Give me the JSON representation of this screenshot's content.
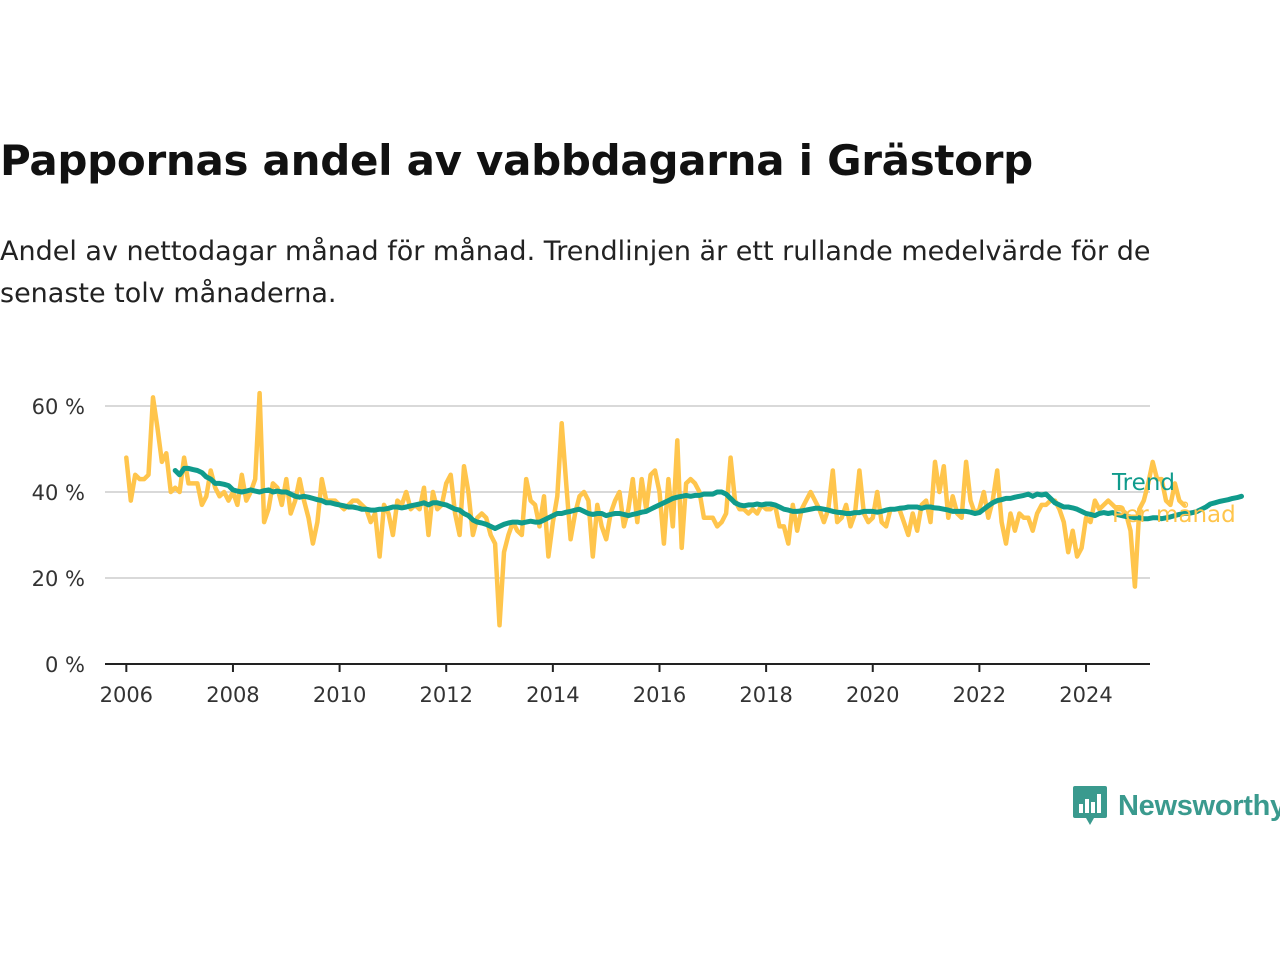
{
  "title": "Pappornas andel av vabbdagarna i Grästorp",
  "subtitle": "Andel av nettodagar månad för månad. Trendlinjen är ett rullande medelvärde för de senaste tolv månaderna.",
  "brand": {
    "name": "Newsworthy",
    "icon": "newsworthy-logo-icon",
    "color": "#3a9a8e"
  },
  "chart_data": {
    "type": "line",
    "ylim": [
      0,
      70
    ],
    "yticks": [
      0,
      20,
      40,
      60
    ],
    "ytick_labels": [
      "0 %",
      "20 %",
      "40 %",
      "60 %"
    ],
    "xlim": [
      2005.6,
      2025.2
    ],
    "xticks": [
      2006,
      2008,
      2010,
      2012,
      2014,
      2016,
      2018,
      2020,
      2022,
      2024
    ],
    "xtick_labels": [
      "2006",
      "2008",
      "2010",
      "2012",
      "2014",
      "2016",
      "2018",
      "2020",
      "2022",
      "2024"
    ],
    "grid": true,
    "series": [
      {
        "name": "Per månad",
        "color": "#ffc54c",
        "start": "2006-01",
        "values": [
          48,
          38,
          44,
          43,
          43,
          44,
          62,
          55,
          47,
          49,
          40,
          41,
          40,
          48,
          42,
          42,
          42,
          37,
          39,
          45,
          41,
          39,
          40,
          38,
          40,
          37,
          44,
          38,
          40,
          43,
          63,
          33,
          36,
          42,
          41,
          37,
          43,
          35,
          38,
          43,
          38,
          34,
          28,
          33,
          43,
          38,
          38,
          38,
          37,
          36,
          37,
          38,
          38,
          37,
          36,
          33,
          35,
          25,
          37,
          35,
          30,
          38,
          37,
          40,
          36,
          37,
          36,
          41,
          30,
          40,
          36,
          37,
          42,
          44,
          35,
          30,
          46,
          40,
          30,
          34,
          35,
          34,
          30,
          28,
          9,
          26,
          30,
          33,
          31,
          30,
          43,
          38,
          37,
          32,
          39,
          25,
          33,
          39,
          56,
          42,
          29,
          35,
          39,
          40,
          38,
          25,
          37,
          32,
          29,
          35,
          38,
          40,
          32,
          36,
          43,
          33,
          43,
          36,
          44,
          45,
          40,
          28,
          43,
          32,
          52,
          27,
          42,
          43,
          42,
          40,
          34,
          34,
          34,
          32,
          33,
          35,
          48,
          38,
          36,
          36,
          35,
          36,
          35,
          37,
          36,
          36,
          37,
          32,
          32,
          28,
          37,
          31,
          36,
          38,
          40,
          38,
          36,
          33,
          36,
          45,
          33,
          34,
          37,
          32,
          35,
          45,
          35,
          33,
          34,
          40,
          33,
          32,
          36,
          36,
          36,
          33,
          30,
          35,
          31,
          37,
          38,
          33,
          47,
          40,
          46,
          34,
          39,
          35,
          34,
          47,
          38,
          35,
          36,
          40,
          34,
          38,
          45,
          33,
          28,
          35,
          31,
          35,
          34,
          34,
          31,
          35,
          37,
          37,
          38,
          38,
          36,
          33,
          26,
          31,
          25,
          27,
          34,
          33,
          38,
          36,
          37,
          38,
          37,
          36,
          36,
          35,
          31,
          18,
          36,
          38,
          42,
          47,
          43,
          43,
          38,
          37,
          42,
          38,
          37
        ]
      },
      {
        "name": "Trend",
        "color": "#109b8c",
        "start": "2006-12",
        "values": [
          45,
          44,
          45.5,
          45.5,
          45.2,
          45,
          44.5,
          43.5,
          43,
          42,
          42,
          41.8,
          41.5,
          40.5,
          40.2,
          40,
          40.2,
          40.5,
          40.2,
          40,
          40.3,
          40.5,
          40,
          40.2,
          40,
          40,
          39.5,
          39,
          38.8,
          39,
          38.8,
          38.5,
          38.2,
          38,
          37.5,
          37.5,
          37.2,
          37,
          36.8,
          36.5,
          36.5,
          36.3,
          36,
          36,
          35.8,
          35.8,
          36,
          36,
          36.2,
          36.5,
          36.5,
          36.3,
          36.5,
          36.8,
          37,
          37.2,
          37.5,
          37,
          37.5,
          37.5,
          37.2,
          37,
          36.5,
          36,
          35.8,
          35,
          34.5,
          33.5,
          33,
          32.8,
          32.5,
          32,
          31.5,
          32,
          32.5,
          32.8,
          33,
          33,
          32.8,
          33,
          33.2,
          33,
          33,
          33.5,
          34,
          34.5,
          35,
          35,
          35.3,
          35.5,
          35.8,
          36,
          35.5,
          35,
          34.8,
          35,
          35,
          34.5,
          34.8,
          35,
          35,
          34.8,
          34.5,
          34.8,
          35,
          35.3,
          35.5,
          36,
          36.5,
          37,
          37.5,
          38,
          38.5,
          38.8,
          39,
          39.2,
          39,
          39.2,
          39.2,
          39.5,
          39.5,
          39.5,
          40,
          40,
          39.5,
          38.5,
          37.5,
          37,
          36.8,
          37,
          37,
          37.2,
          37,
          37.2,
          37.2,
          37,
          36.5,
          36,
          35.8,
          35.5,
          35.5,
          35.6,
          35.8,
          36,
          36.2,
          36.2,
          36,
          35.8,
          35.5,
          35.3,
          35.2,
          35,
          35,
          35.2,
          35.2,
          35.5,
          35.5,
          35.5,
          35.3,
          35.5,
          35.8,
          36,
          36,
          36.2,
          36.3,
          36.5,
          36.5,
          36.5,
          36.2,
          36.5,
          36.5,
          36.3,
          36.2,
          36,
          35.8,
          35.5,
          35.5,
          35.5,
          35.5,
          35.3,
          35,
          35.2,
          36,
          36.8,
          37.5,
          38,
          38.2,
          38.5,
          38.5,
          38.8,
          39,
          39.2,
          39.5,
          39,
          39.5,
          39.3,
          39.5,
          38.5,
          37.5,
          37,
          36.5,
          36.5,
          36.3,
          36,
          35.5,
          35,
          34.8,
          34.5,
          35,
          35.2,
          35,
          35.2,
          34.8,
          34.5,
          34.3,
          34.2,
          34,
          34,
          33.8,
          33.8,
          34,
          34,
          33.8,
          34,
          34.2,
          34.5,
          34.8,
          35,
          35,
          35.2,
          35.5,
          36,
          36.5,
          37.2,
          37.5,
          37.8,
          38,
          38.2,
          38.5,
          38.7,
          39
        ]
      }
    ]
  }
}
